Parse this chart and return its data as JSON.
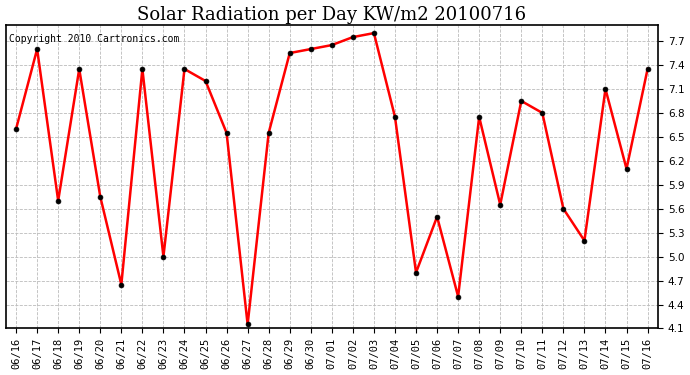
{
  "title": "Solar Radiation per Day KW/m2 20100716",
  "copyright": "Copyright 2010 Cartronics.com",
  "dates": [
    "06/16",
    "06/17",
    "06/18",
    "06/19",
    "06/20",
    "06/21",
    "06/22",
    "06/23",
    "06/24",
    "06/25",
    "06/26",
    "06/27",
    "06/28",
    "06/29",
    "06/30",
    "07/01",
    "07/02",
    "07/03",
    "07/04",
    "07/05",
    "07/06",
    "07/07",
    "07/08",
    "07/09",
    "07/10",
    "07/11",
    "07/12",
    "07/13",
    "07/14",
    "07/15",
    "07/16"
  ],
  "values": [
    6.6,
    7.6,
    5.7,
    7.35,
    5.75,
    4.65,
    7.35,
    5.0,
    7.35,
    7.2,
    6.55,
    4.15,
    6.55,
    7.55,
    7.6,
    7.65,
    7.75,
    7.8,
    6.75,
    4.8,
    5.5,
    4.5,
    6.75,
    5.65,
    6.95,
    6.8,
    5.6,
    5.2,
    7.1,
    6.1,
    7.35
  ],
  "line_color": "#ff0000",
  "marker_color": "#000000",
  "bg_color": "#ffffff",
  "plot_bg_color": "#ffffff",
  "grid_color": "#bbbbbb",
  "title_fontsize": 13,
  "tick_fontsize": 7.5,
  "copyright_fontsize": 7,
  "ylim_min": 4.1,
  "ylim_max": 7.9,
  "yticks": [
    4.1,
    4.4,
    4.7,
    5.0,
    5.3,
    5.6,
    5.9,
    6.2,
    6.5,
    6.8,
    7.1,
    7.4,
    7.7
  ],
  "linewidth": 1.8,
  "markersize": 3.5
}
